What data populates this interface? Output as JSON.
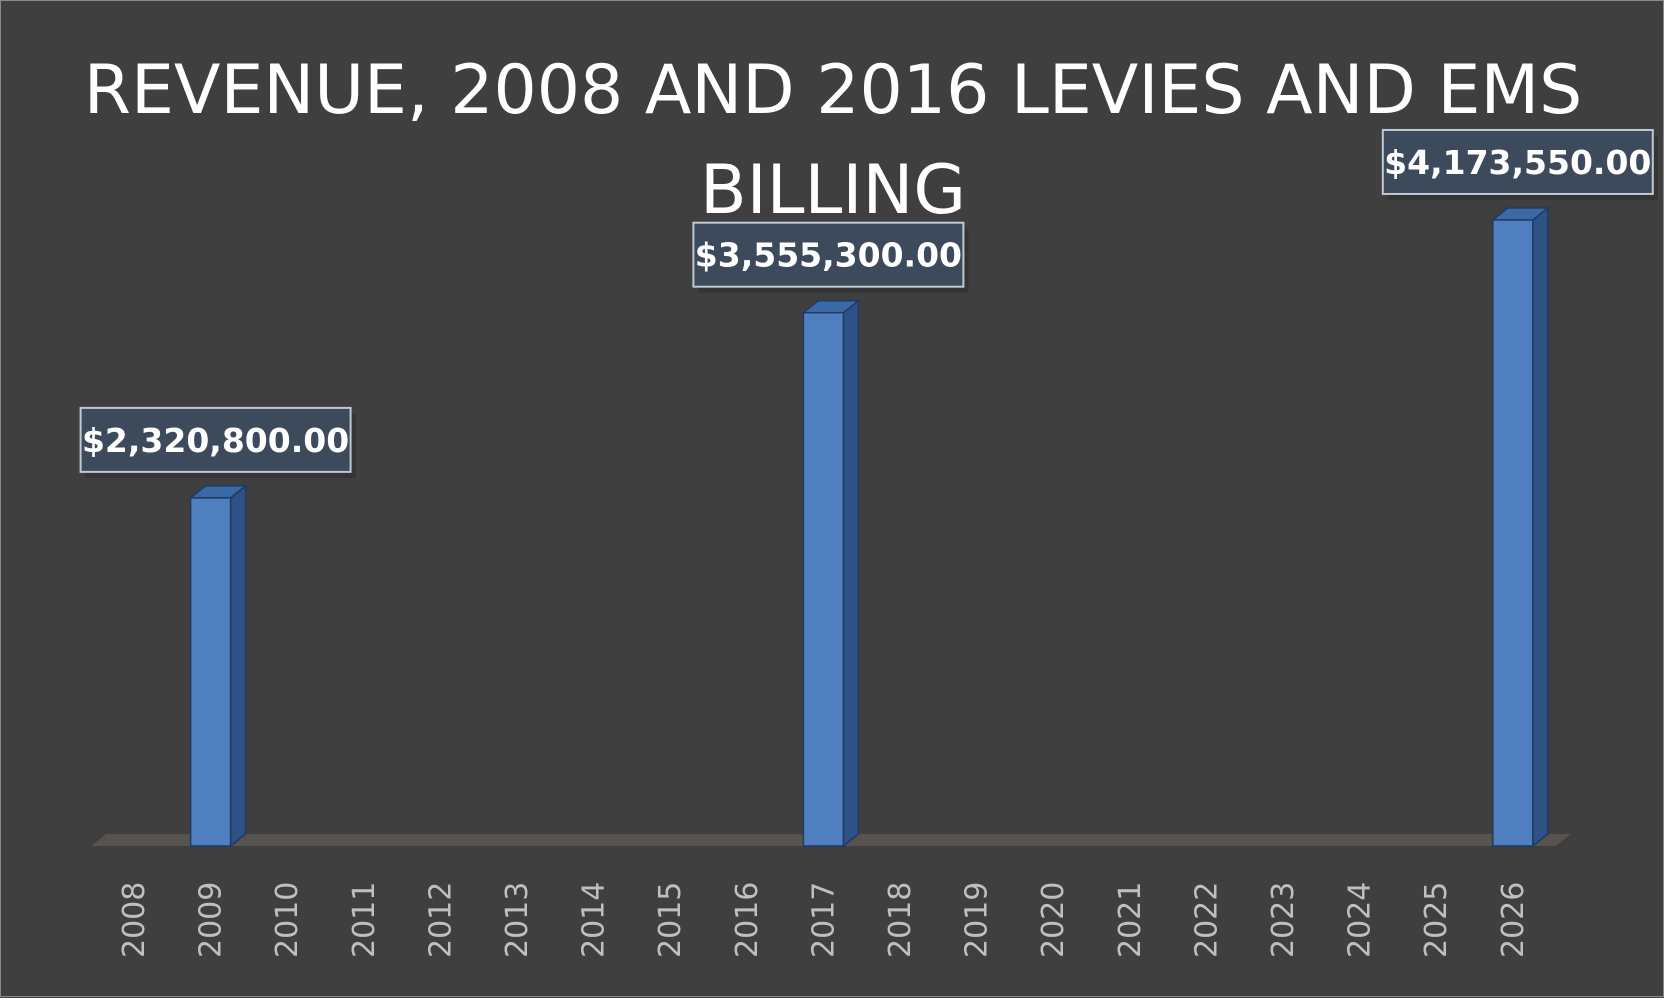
{
  "chart_data": {
    "type": "bar",
    "title": "REVENUE, 2008 AND 2016 LEVIES AND EMS BILLING",
    "categories": [
      "2008",
      "2009",
      "2010",
      "2011",
      "2012",
      "2013",
      "2014",
      "2015",
      "2016",
      "2017",
      "2018",
      "2019",
      "2020",
      "2021",
      "2022",
      "2023",
      "2024",
      "2025",
      "2026"
    ],
    "values": [
      null,
      2320800,
      null,
      null,
      null,
      null,
      null,
      null,
      null,
      3555300,
      null,
      null,
      null,
      null,
      null,
      null,
      null,
      null,
      4173550
    ],
    "data_labels": [
      "",
      "$2,320,800.00",
      "",
      "",
      "",
      "",
      "",
      "",
      "",
      "$3,555,300.00",
      "",
      "",
      "",
      "",
      "",
      "",
      "",
      "",
      "$4,173,550.00"
    ],
    "xlabel": "",
    "ylabel": "",
    "ylim": [
      0,
      5000000
    ],
    "grid": false,
    "legend": "none",
    "style": "3d-column",
    "colors": {
      "background": "#3f3f3f",
      "bar_front": "#4f7fbf",
      "bar_side": "#2e5286",
      "bar_top": "#3a69a6",
      "floor": "#57534f",
      "tick_label": "#bfbfbf",
      "label_box": "#3d4a5c",
      "label_border": "#c0c8d2",
      "label_text": "#ffffff"
    }
  }
}
